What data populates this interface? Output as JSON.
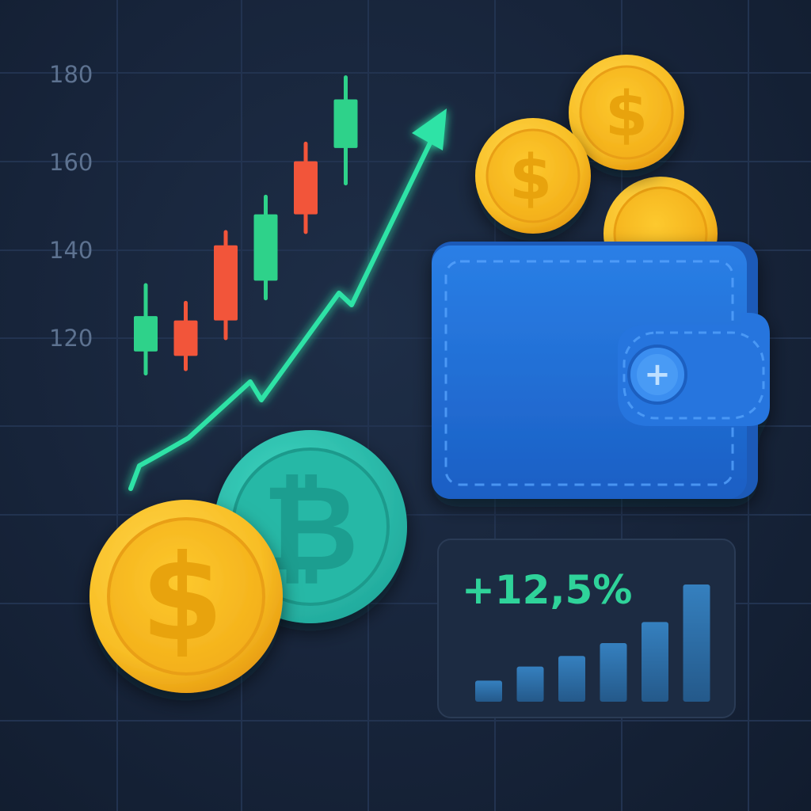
{
  "colors": {
    "background": "#17243a",
    "grid": "#24344f",
    "axis_text": "#5d7290",
    "candle_up": "#2ed28a",
    "candle_down": "#f2553a",
    "trend_line": "#2fe3a6",
    "coin_gold": "#f8be25",
    "coin_teal": "#2ec4b0",
    "wallet_blue": "#1f6fd6",
    "bar_blue": "#2e6ea3",
    "pct_green": "#2fd39a"
  },
  "y_axis": {
    "ticks": [
      {
        "value": 180,
        "label": "180"
      },
      {
        "value": 160,
        "label": "160"
      },
      {
        "value": 140,
        "label": "140"
      },
      {
        "value": 120,
        "label": "120"
      }
    ]
  },
  "candles": [
    {
      "direction": "up",
      "open": 117,
      "close": 125,
      "high": 132,
      "low": 112
    },
    {
      "direction": "down",
      "open": 124,
      "close": 116,
      "high": 128,
      "low": 113
    },
    {
      "direction": "down",
      "open": 141,
      "close": 124,
      "high": 144,
      "low": 120
    },
    {
      "direction": "up",
      "open": 133,
      "close": 148,
      "high": 152,
      "low": 129
    },
    {
      "direction": "down",
      "open": 160,
      "close": 148,
      "high": 164,
      "low": 144
    },
    {
      "direction": "up",
      "open": 163,
      "close": 174,
      "high": 179,
      "low": 155
    }
  ],
  "icons": {
    "dollar_symbol": "$",
    "bitcoin_symbol": "₿",
    "wallet_clasp_symbol": "+",
    "trend_arrow": "arrow-up-right-icon"
  },
  "stats_card": {
    "percent_change": "+12,5%",
    "bar_levels": [
      0.18,
      0.3,
      0.39,
      0.5,
      0.68,
      1.0
    ]
  }
}
